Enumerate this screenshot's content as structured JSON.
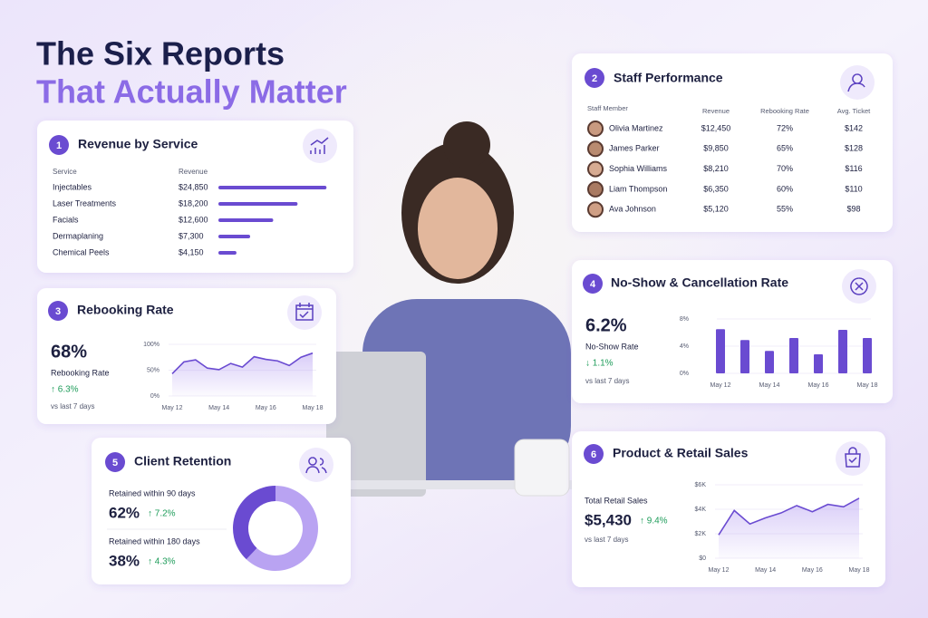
{
  "header": {
    "title": "The Six Reports",
    "subtitle": "That Actually Matter"
  },
  "revenue_by_service": {
    "badge": "1",
    "title": "Revenue by Service",
    "column_headers": [
      "Service",
      "Revenue"
    ],
    "chart_data": {
      "type": "hbar",
      "categories": [
        "Injectables",
        "Laser Treatments",
        "Facials",
        "Dermaplaning",
        "Chemical Peels"
      ],
      "values": [
        24850,
        18200,
        12600,
        7300,
        4150
      ],
      "value_labels": [
        "$24,850",
        "$18,200",
        "$12,600",
        "$7,300",
        "$4,150"
      ],
      "color": "#6a4bd1",
      "xlim": [
        0,
        25000
      ]
    }
  },
  "staff_performance": {
    "badge": "2",
    "title": "Staff Performance",
    "column_headers": [
      "Staff Member",
      "Revenue",
      "Rebooking Rate",
      "Avg. Ticket"
    ],
    "rows": [
      [
        "Olivia Martinez",
        "$12,450",
        "72%",
        "$142"
      ],
      [
        "James Parker",
        "$9,850",
        "65%",
        "$128"
      ],
      [
        "Sophia Williams",
        "$8,210",
        "70%",
        "$116"
      ],
      [
        "Liam Thompson",
        "$6,350",
        "60%",
        "$110"
      ],
      [
        "Ava Johnson",
        "$5,120",
        "55%",
        "$98"
      ]
    ]
  },
  "rebooking_rate": {
    "badge": "3",
    "title": "Rebooking Rate",
    "kpi": "68%",
    "kpi_label": "Rebooking Rate",
    "change": "↑ 6.3%",
    "period": "vs last 7 days",
    "chart_data": {
      "type": "area",
      "x": [
        "May 12",
        null,
        null,
        null,
        "May 14",
        null,
        null,
        null,
        "May 16",
        null,
        null,
        null,
        "May 18"
      ],
      "values": [
        43,
        66,
        70,
        54,
        51,
        63,
        56,
        76,
        71,
        68,
        59,
        75,
        83
      ],
      "color": "#6a4bd1",
      "ylim": [
        0,
        100
      ],
      "yticks": [
        {
          "value": 0,
          "label": "0%"
        },
        {
          "value": 50,
          "label": "50%"
        },
        {
          "value": 100,
          "label": "100%"
        }
      ]
    }
  },
  "no_show_rate": {
    "badge": "4",
    "title": "No-Show & Cancellation Rate",
    "kpi": "6.2%",
    "kpi_label": "No-Show Rate",
    "change": "↓ 1.1%",
    "period": "vs last 7 days",
    "chart_data": {
      "type": "bar",
      "x": [
        "May 12",
        null,
        "May 14",
        null,
        "May 16",
        null,
        "May 18"
      ],
      "values": [
        6.5,
        4.9,
        3.3,
        5.2,
        2.8,
        6.4,
        5.2
      ],
      "color": "#6a4bd1",
      "ylim": [
        0,
        8
      ],
      "yticks": [
        {
          "value": 0,
          "label": "0%"
        },
        {
          "value": 4,
          "label": "4%"
        },
        {
          "value": 8,
          "label": "8%"
        }
      ]
    }
  },
  "client_retention": {
    "badge": "5",
    "title": "Client Retention",
    "chart_data": {
      "type": "donut",
      "categories": [
        "Retained within 90 days",
        "Retained within 180 days"
      ],
      "values": [
        62,
        38
      ],
      "value_labels": [
        "62%",
        "38%"
      ],
      "changes": [
        "↑ 7.2%",
        "↑ 4.3%"
      ],
      "colors": [
        "#b9a3f2",
        "#6a4bd1"
      ]
    }
  },
  "retail_sales": {
    "badge": "6",
    "title": "Product & Retail Sales",
    "kpi_label": "Total Retail Sales",
    "kpi": "$5,430",
    "change": "↑ 9.4%",
    "period": "vs last 7 days",
    "chart_data": {
      "type": "area",
      "x": [
        "May 12",
        null,
        null,
        "May 14",
        null,
        null,
        "May 16",
        null,
        null,
        "May 18"
      ],
      "values": [
        1900,
        3900,
        2800,
        3300,
        3700,
        4300,
        3800,
        4400,
        4200,
        4900
      ],
      "color": "#6a4bd1",
      "ylim": [
        0,
        6000
      ],
      "yticks": [
        {
          "value": 0,
          "label": "$0"
        },
        {
          "value": 2000,
          "label": "$2K"
        },
        {
          "value": 4000,
          "label": "$4K"
        },
        {
          "value": 6000,
          "label": "$6K"
        }
      ]
    }
  }
}
